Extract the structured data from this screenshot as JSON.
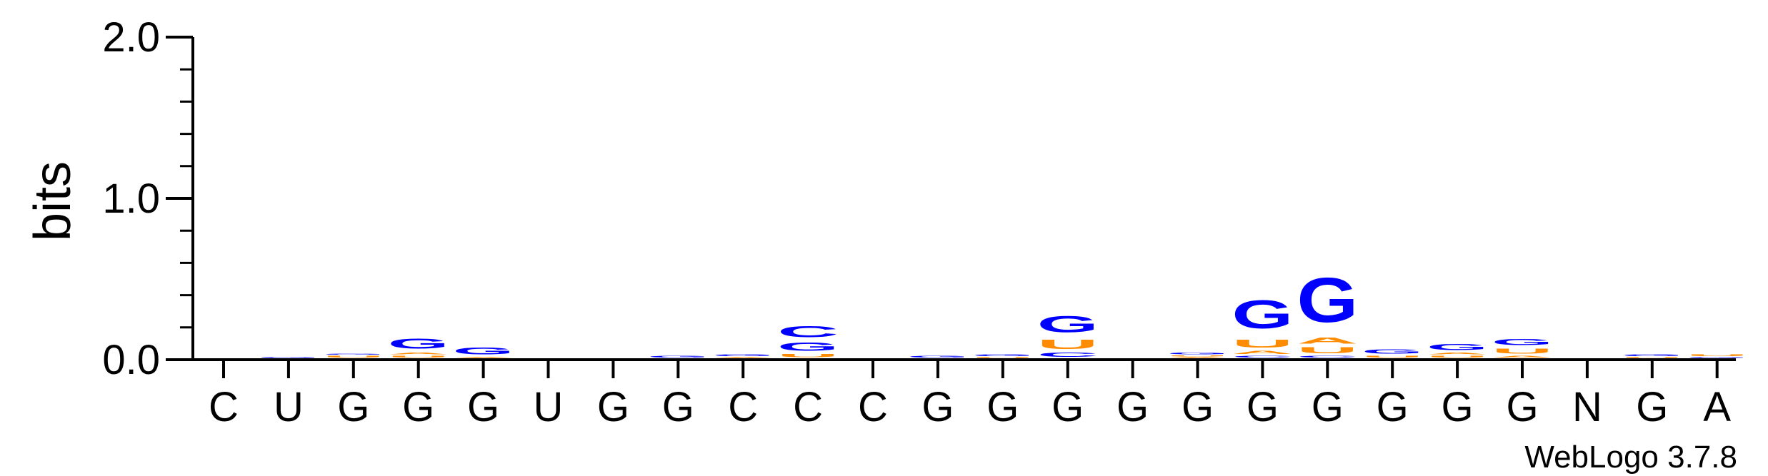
{
  "chart_data": {
    "type": "sequence-logo",
    "ylabel": "bits",
    "ylim": [
      0,
      2.0
    ],
    "yticks": [
      "0.0",
      "1.0",
      "2.0"
    ],
    "positions": [
      "C",
      "U",
      "G",
      "G",
      "G",
      "U",
      "G",
      "G",
      "C",
      "C",
      "C",
      "G",
      "G",
      "G",
      "G",
      "G",
      "G",
      "G",
      "G",
      "G",
      "G",
      "N",
      "G",
      "A"
    ],
    "stacks": [
      [],
      [
        {
          "letter": "G",
          "bits": 0.01
        }
      ],
      [
        {
          "letter": "U",
          "bits": 0.02
        },
        {
          "letter": "G",
          "bits": 0.01
        }
      ],
      [
        {
          "letter": "U",
          "bits": 0.02
        },
        {
          "letter": "A",
          "bits": 0.02
        },
        {
          "letter": "G",
          "bits": 0.1
        }
      ],
      [
        {
          "letter": "A",
          "bits": 0.01
        },
        {
          "letter": "G",
          "bits": 0.07
        }
      ],
      [],
      [],
      [
        {
          "letter": "G",
          "bits": 0.02
        }
      ],
      [
        {
          "letter": "A",
          "bits": 0.01
        },
        {
          "letter": "G",
          "bits": 0.02
        }
      ],
      [
        {
          "letter": "U",
          "bits": 0.03
        },
        {
          "letter": "G",
          "bits": 0.08
        },
        {
          "letter": "C",
          "bits": 0.11
        }
      ],
      [],
      [
        {
          "letter": "G",
          "bits": 0.02
        }
      ],
      [
        {
          "letter": "U",
          "bits": 0.01
        },
        {
          "letter": "G",
          "bits": 0.02
        }
      ],
      [
        {
          "letter": "C",
          "bits": 0.04
        },
        {
          "letter": "U",
          "bits": 0.09
        },
        {
          "letter": "G",
          "bits": 0.16
        }
      ],
      [],
      [
        {
          "letter": "A",
          "bits": 0.01
        },
        {
          "letter": "U",
          "bits": 0.01
        },
        {
          "letter": "G",
          "bits": 0.02
        }
      ],
      [
        {
          "letter": "C",
          "bits": 0.02
        },
        {
          "letter": "A",
          "bits": 0.03
        },
        {
          "letter": "U",
          "bits": 0.08
        },
        {
          "letter": "G",
          "bits": 0.28
        }
      ],
      [
        {
          "letter": "C",
          "bits": 0.02
        },
        {
          "letter": "U",
          "bits": 0.06
        },
        {
          "letter": "A",
          "bits": 0.06
        },
        {
          "letter": "G",
          "bits": 0.44
        }
      ],
      [
        {
          "letter": "U",
          "bits": 0.02
        },
        {
          "letter": "G",
          "bits": 0.04
        }
      ],
      [
        {
          "letter": "U",
          "bits": 0.02
        },
        {
          "letter": "A",
          "bits": 0.02
        },
        {
          "letter": "G",
          "bits": 0.06
        }
      ],
      [
        {
          "letter": "A",
          "bits": 0.02
        },
        {
          "letter": "U",
          "bits": 0.05
        },
        {
          "letter": "G",
          "bits": 0.06
        }
      ],
      [],
      [
        {
          "letter": "U",
          "bits": 0.01
        },
        {
          "letter": "G",
          "bits": 0.02
        }
      ],
      [
        {
          "letter": "G",
          "bits": 0.01
        },
        {
          "letter": "U",
          "bits": 0.02
        }
      ]
    ],
    "colors": {
      "G": "#0000ff",
      "C": "#0000ff",
      "A": "#ff8c00",
      "U": "#ff8c00"
    },
    "credit": "WebLogo 3.7.8"
  }
}
